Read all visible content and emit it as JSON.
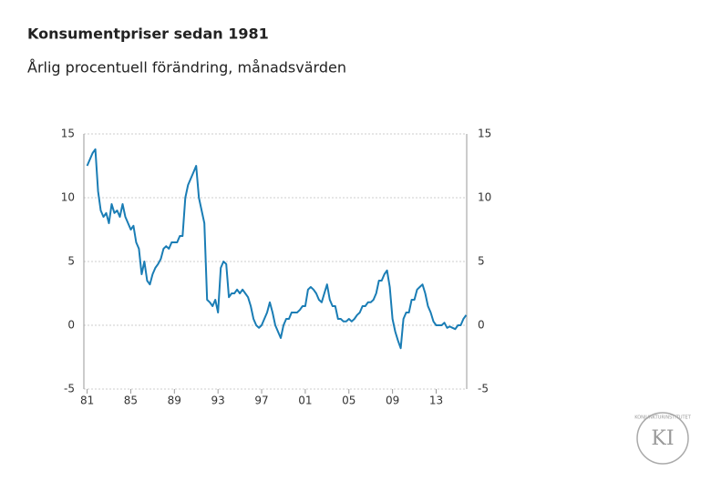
{
  "chart_data": {
    "type": "line",
    "title": "Konsumentpriser sedan 1981",
    "subtitle": "Årlig procentuell förändring, månadsvärden",
    "x": [
      1981,
      1981.25,
      1981.5,
      1981.75,
      1982,
      1982.25,
      1982.5,
      1982.75,
      1983,
      1983.25,
      1983.5,
      1983.75,
      1984,
      1984.25,
      1984.5,
      1984.75,
      1985,
      1985.25,
      1985.5,
      1985.75,
      1986,
      1986.25,
      1986.5,
      1986.75,
      1987,
      1987.25,
      1987.5,
      1987.75,
      1988,
      1988.25,
      1988.5,
      1988.75,
      1989,
      1989.25,
      1989.5,
      1989.75,
      1990,
      1990.25,
      1990.5,
      1990.75,
      1991,
      1991.25,
      1991.5,
      1991.75,
      1992,
      1992.25,
      1992.5,
      1992.75,
      1993,
      1993.25,
      1993.5,
      1993.75,
      1994,
      1994.25,
      1994.5,
      1994.75,
      1995,
      1995.25,
      1995.5,
      1995.75,
      1996,
      1996.25,
      1996.5,
      1996.75,
      1997,
      1997.25,
      1997.5,
      1997.75,
      1998,
      1998.25,
      1998.5,
      1998.75,
      1999,
      1999.25,
      1999.5,
      1999.75,
      2000,
      2000.25,
      2000.5,
      2000.75,
      2001,
      2001.25,
      2001.5,
      2001.75,
      2002,
      2002.25,
      2002.5,
      2002.75,
      2003,
      2003.25,
      2003.5,
      2003.75,
      2004,
      2004.25,
      2004.5,
      2004.75,
      2005,
      2005.25,
      2005.5,
      2005.75,
      2006,
      2006.25,
      2006.5,
      2006.75,
      2007,
      2007.25,
      2007.5,
      2007.75,
      2008,
      2008.25,
      2008.5,
      2008.75,
      2009,
      2009.25,
      2009.5,
      2009.75,
      2010,
      2010.25,
      2010.5,
      2010.75,
      2011,
      2011.25,
      2011.5,
      2011.75,
      2012,
      2012.25,
      2012.5,
      2012.75,
      2013,
      2013.25,
      2013.5,
      2013.75,
      2014,
      2014.25,
      2014.5,
      2014.75,
      2015,
      2015.25,
      2015.5,
      2015.75
    ],
    "series": [
      {
        "color": "#1a7db5",
        "values": [
          12.5,
          13,
          13.5,
          13.8,
          10.5,
          9,
          8.5,
          8.8,
          8,
          9.5,
          8.8,
          9,
          8.5,
          9.5,
          8.5,
          8,
          7.5,
          7.8,
          6.5,
          6,
          4,
          5,
          3.5,
          3.2,
          4,
          4.5,
          4.8,
          5.2,
          6,
          6.2,
          6,
          6.5,
          6.5,
          6.5,
          7,
          7,
          10,
          11,
          11.5,
          12,
          12.5,
          10,
          9,
          8,
          2,
          1.8,
          1.5,
          2,
          1,
          4.5,
          5,
          4.8,
          2.2,
          2.5,
          2.5,
          2.8,
          2.5,
          2.8,
          2.5,
          2.2,
          1.5,
          0.5,
          0,
          -0.2,
          0,
          0.5,
          1,
          1.8,
          1,
          0,
          -0.5,
          -1,
          0,
          0.5,
          0.5,
          1,
          1,
          1,
          1.2,
          1.5,
          1.5,
          2.8,
          3,
          2.8,
          2.5,
          2,
          1.8,
          2.5,
          3.2,
          2,
          1.5,
          1.5,
          0.5,
          0.5,
          0.3,
          0.3,
          0.5,
          0.3,
          0.5,
          0.8,
          1,
          1.5,
          1.5,
          1.8,
          1.8,
          2,
          2.5,
          3.5,
          3.5,
          4,
          4.3,
          3,
          0.5,
          -0.5,
          -1.2,
          -1.8,
          0.5,
          1,
          1,
          2,
          2,
          2.8,
          3,
          3.2,
          2.5,
          1.5,
          1,
          0.3,
          0,
          0,
          0,
          0.2,
          -0.2,
          -0.1,
          -0.2,
          -0.3,
          0,
          0,
          0.5,
          0.8
        ]
      }
    ],
    "xlim": [
      1980.7,
      2015.8
    ],
    "xticks": [
      {
        "value": 1981,
        "label": "81"
      },
      {
        "value": 1985,
        "label": "85"
      },
      {
        "value": 1989,
        "label": "89"
      },
      {
        "value": 1993,
        "label": "93"
      },
      {
        "value": 1997,
        "label": "97"
      },
      {
        "value": 2001,
        "label": "01"
      },
      {
        "value": 2005,
        "label": "05"
      },
      {
        "value": 2009,
        "label": "09"
      },
      {
        "value": 2013,
        "label": "13"
      }
    ],
    "ylim": [
      -5,
      15
    ],
    "yticks": [
      -5,
      0,
      5,
      10,
      15
    ],
    "grid": true
  },
  "logo": {
    "letters": "KI",
    "ring": "KONJUNKTURINSTITUTET"
  }
}
